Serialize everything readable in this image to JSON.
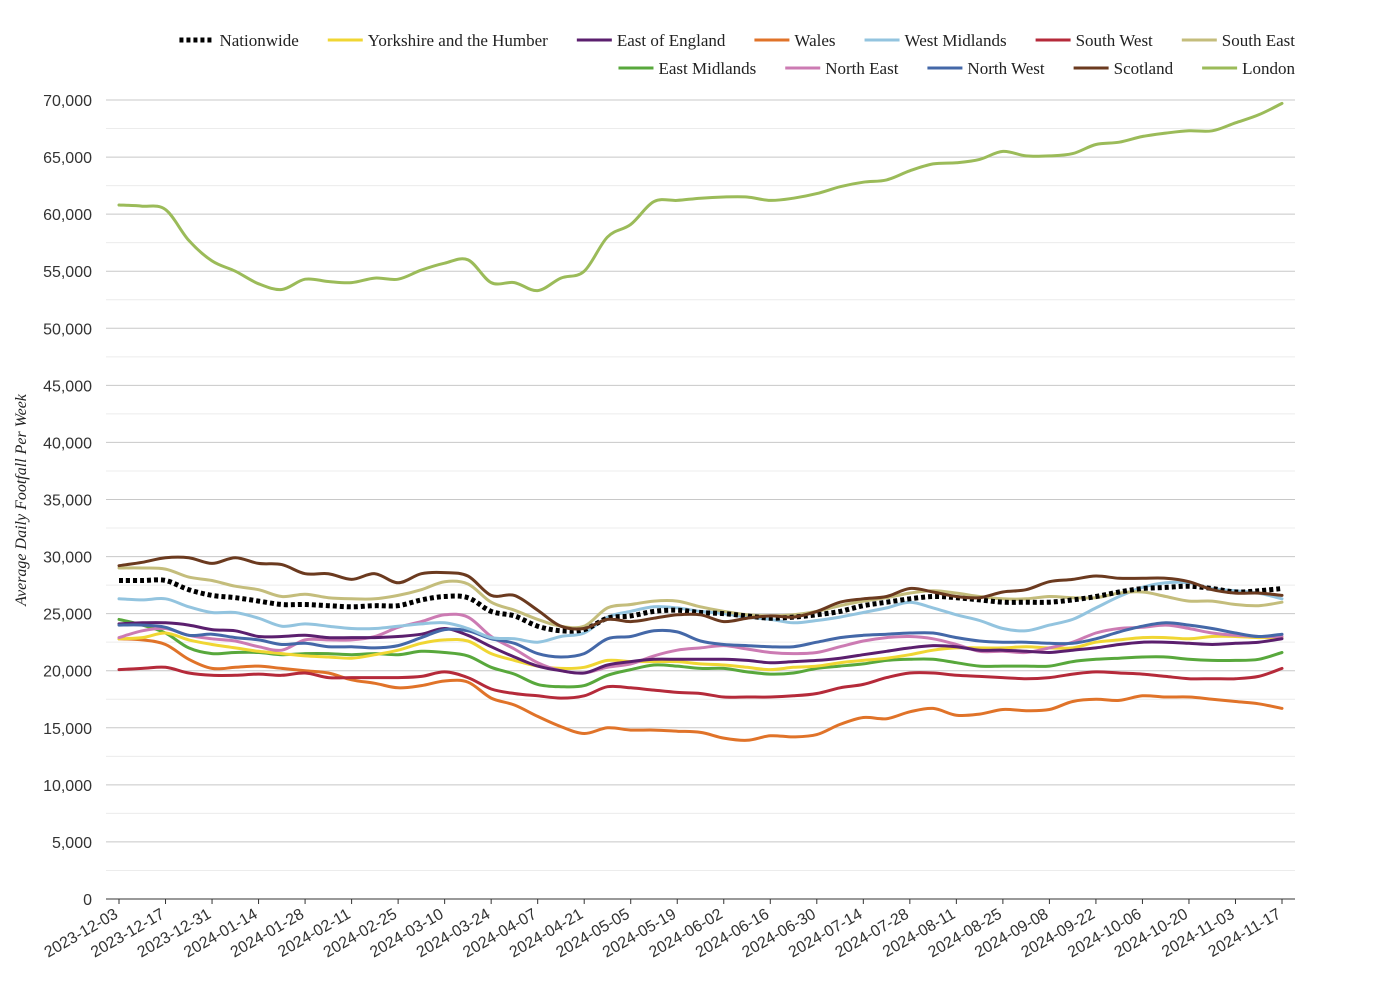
{
  "chart_data": {
    "type": "line",
    "title": "",
    "ylabel": "Average Daily Footfall Per Week",
    "xlabel": "",
    "ylim": [
      0,
      70000
    ],
    "yticks": [
      0,
      5000,
      10000,
      15000,
      20000,
      25000,
      30000,
      35000,
      40000,
      45000,
      50000,
      55000,
      60000,
      65000,
      70000
    ],
    "ytick_labels": [
      "0",
      "5,000",
      "10,000",
      "15,000",
      "20,000",
      "25,000",
      "30,000",
      "35,000",
      "40,000",
      "45,000",
      "50,000",
      "55,000",
      "60,000",
      "65,000",
      "70,000"
    ],
    "x_tick_labels": [
      "2023-12-03",
      "2023-12-17",
      "2023-12-31",
      "2024-01-14",
      "2024-01-28",
      "2024-02-11",
      "2024-02-25",
      "2024-03-10",
      "2024-03-24",
      "2024-04-07",
      "2024-04-21",
      "2024-05-05",
      "2024-05-19",
      "2024-06-02",
      "2024-06-16",
      "2024-06-30",
      "2024-07-14",
      "2024-07-28",
      "2024-08-11",
      "2024-08-25",
      "2024-09-08",
      "2024-09-22",
      "2024-10-06",
      "2024-10-20",
      "2024-11-03",
      "2024-11-17"
    ],
    "grid": true,
    "legend_position": "top",
    "x": [
      "2023-12-03",
      "2023-12-10",
      "2023-12-17",
      "2023-12-24",
      "2023-12-31",
      "2024-01-07",
      "2024-01-14",
      "2024-01-21",
      "2024-01-28",
      "2024-02-04",
      "2024-02-11",
      "2024-02-18",
      "2024-02-25",
      "2024-03-03",
      "2024-03-10",
      "2024-03-17",
      "2024-03-24",
      "2024-03-31",
      "2024-04-07",
      "2024-04-14",
      "2024-04-21",
      "2024-04-28",
      "2024-05-05",
      "2024-05-12",
      "2024-05-19",
      "2024-05-26",
      "2024-06-02",
      "2024-06-09",
      "2024-06-16",
      "2024-06-23",
      "2024-06-30",
      "2024-07-07",
      "2024-07-14",
      "2024-07-21",
      "2024-07-28",
      "2024-08-04",
      "2024-08-11",
      "2024-08-18",
      "2024-08-25",
      "2024-09-01",
      "2024-09-08",
      "2024-09-15",
      "2024-09-22",
      "2024-09-29",
      "2024-10-06",
      "2024-10-13",
      "2024-10-20",
      "2024-10-27",
      "2024-11-03",
      "2024-11-10",
      "2024-11-17"
    ],
    "series": [
      {
        "name": "London",
        "color": "#9bbb59",
        "values": [
          60800,
          60700,
          60400,
          57700,
          55900,
          55000,
          53900,
          53400,
          54300,
          54100,
          54000,
          54400,
          54300,
          55100,
          55700,
          56000,
          54000,
          54000,
          53300,
          54400,
          55000,
          58000,
          59100,
          61100,
          61200,
          61400,
          61500,
          61500,
          61200,
          61400,
          61800,
          62400,
          62800,
          63000,
          63800,
          64400,
          64500,
          64800,
          65500,
          65100,
          65100,
          65300,
          66100,
          66300,
          66800,
          67100,
          67300,
          67300,
          68000,
          68700,
          69700
        ]
      },
      {
        "name": "Scotland",
        "color": "#6b3a1f",
        "values": [
          29200,
          29500,
          29900,
          29900,
          29400,
          29900,
          29400,
          29300,
          28500,
          28500,
          28000,
          28500,
          27700,
          28500,
          28600,
          28300,
          26600,
          26600,
          25300,
          23900,
          23700,
          24500,
          24300,
          24600,
          24900,
          24900,
          24300,
          24600,
          24800,
          24700,
          25200,
          26000,
          26300,
          26500,
          27200,
          26900,
          26500,
          26400,
          26900,
          27100,
          27800,
          28000,
          28300,
          28100,
          28100,
          28100,
          27800,
          27100,
          26800,
          26800,
          26600
        ]
      },
      {
        "name": "Nationwide",
        "color": "#000000",
        "dashed": true,
        "values": [
          27900,
          27900,
          27900,
          27100,
          26600,
          26400,
          26100,
          25800,
          25800,
          25700,
          25600,
          25700,
          25700,
          26200,
          26500,
          26400,
          25200,
          24800,
          23900,
          23500,
          23600,
          24600,
          24800,
          25200,
          25300,
          25100,
          25000,
          24800,
          24600,
          24700,
          24900,
          25200,
          25700,
          26000,
          26300,
          26500,
          26400,
          26200,
          26000,
          26000,
          26000,
          26200,
          26500,
          26900,
          27200,
          27300,
          27400,
          27200,
          26900,
          27000,
          27200
        ]
      },
      {
        "name": "South East",
        "color": "#c4bd7c",
        "values": [
          29000,
          29000,
          28900,
          28200,
          27900,
          27400,
          27100,
          26500,
          26700,
          26400,
          26300,
          26300,
          26600,
          27100,
          27800,
          27600,
          26000,
          25300,
          24500,
          23900,
          23900,
          25500,
          25800,
          26100,
          26100,
          25600,
          25200,
          24900,
          24800,
          24900,
          25200,
          25700,
          26100,
          26400,
          26800,
          27000,
          26800,
          26500,
          26300,
          26300,
          26500,
          26400,
          26400,
          26800,
          26900,
          26500,
          26100,
          26100,
          25800,
          25700,
          26000
        ]
      },
      {
        "name": "West Midlands",
        "color": "#93c4df",
        "values": [
          26300,
          26200,
          26300,
          25600,
          25100,
          25100,
          24600,
          23900,
          24100,
          23900,
          23700,
          23700,
          23900,
          24100,
          24200,
          23700,
          22900,
          22800,
          22500,
          23000,
          23300,
          24700,
          25200,
          25600,
          25500,
          25200,
          25000,
          24700,
          24500,
          24200,
          24400,
          24700,
          25100,
          25500,
          26000,
          25500,
          24900,
          24400,
          23700,
          23500,
          24000,
          24500,
          25500,
          26500,
          27300,
          27700,
          27700,
          27200,
          27000,
          26800,
          26300
        ]
      },
      {
        "name": "North West",
        "color": "#4468a8",
        "values": [
          24000,
          24000,
          23800,
          23100,
          23200,
          22900,
          22700,
          22300,
          22400,
          22100,
          22100,
          22000,
          22200,
          22900,
          23600,
          23500,
          22800,
          22400,
          21500,
          21200,
          21500,
          22800,
          23000,
          23500,
          23400,
          22600,
          22300,
          22200,
          22100,
          22100,
          22500,
          22900,
          23100,
          23200,
          23300,
          23300,
          22900,
          22600,
          22500,
          22500,
          22400,
          22400,
          22800,
          23400,
          23900,
          24200,
          24000,
          23700,
          23300,
          23000,
          23200
        ]
      },
      {
        "name": "East of England",
        "color": "#5b1f6e",
        "values": [
          24100,
          24200,
          24200,
          24000,
          23600,
          23500,
          23000,
          23000,
          23100,
          22900,
          22900,
          22900,
          23000,
          23200,
          23700,
          23100,
          22100,
          21200,
          20400,
          20000,
          19800,
          20500,
          20800,
          21000,
          21000,
          21000,
          21000,
          20900,
          20700,
          20800,
          20900,
          21100,
          21400,
          21700,
          22000,
          22200,
          22100,
          21800,
          21800,
          21700,
          21600,
          21800,
          22000,
          22300,
          22500,
          22500,
          22400,
          22300,
          22400,
          22500,
          22800
        ]
      },
      {
        "name": "North East",
        "color": "#cc7bb3",
        "values": [
          22900,
          23500,
          23700,
          23100,
          22800,
          22600,
          22100,
          21800,
          22700,
          22700,
          22700,
          23000,
          23800,
          24300,
          24900,
          24700,
          23000,
          21900,
          20700,
          20000,
          19800,
          20300,
          20600,
          21300,
          21800,
          22000,
          22200,
          21900,
          21600,
          21500,
          21600,
          22100,
          22600,
          22900,
          23000,
          22800,
          22300,
          21700,
          21700,
          21600,
          22000,
          22500,
          23300,
          23700,
          23800,
          24000,
          23700,
          23300,
          23100,
          23000,
          23000
        ]
      },
      {
        "name": "Yorkshire and the Humber",
        "color": "#f0d633",
        "values": [
          22800,
          22900,
          23300,
          22700,
          22300,
          22000,
          21700,
          21500,
          21300,
          21200,
          21100,
          21400,
          21800,
          22400,
          22700,
          22600,
          21500,
          20900,
          20400,
          20200,
          20300,
          20900,
          20800,
          20800,
          20800,
          20600,
          20500,
          20300,
          20100,
          20300,
          20400,
          20700,
          20900,
          21100,
          21400,
          21800,
          22000,
          22000,
          22000,
          22100,
          22000,
          22000,
          22500,
          22700,
          22900,
          22900,
          22800,
          23000,
          23000,
          22900,
          22900
        ]
      },
      {
        "name": "East Midlands",
        "color": "#58a83c",
        "values": [
          24500,
          24000,
          23300,
          22000,
          21500,
          21600,
          21600,
          21400,
          21500,
          21500,
          21400,
          21500,
          21400,
          21700,
          21600,
          21300,
          20300,
          19700,
          18800,
          18600,
          18700,
          19600,
          20100,
          20500,
          20400,
          20200,
          20200,
          19900,
          19700,
          19800,
          20200,
          20400,
          20600,
          20900,
          21000,
          21000,
          20700,
          20400,
          20400,
          20400,
          20400,
          20800,
          21000,
          21100,
          21200,
          21200,
          21000,
          20900,
          20900,
          21000,
          21600
        ]
      },
      {
        "name": "South West",
        "color": "#b52a3a",
        "values": [
          20100,
          20200,
          20300,
          19800,
          19600,
          19600,
          19700,
          19600,
          19800,
          19400,
          19400,
          19400,
          19400,
          19500,
          19900,
          19400,
          18400,
          18000,
          17800,
          17600,
          17800,
          18600,
          18500,
          18300,
          18100,
          18000,
          17700,
          17700,
          17700,
          17800,
          18000,
          18500,
          18800,
          19400,
          19800,
          19800,
          19600,
          19500,
          19400,
          19300,
          19400,
          19700,
          19900,
          19800,
          19700,
          19500,
          19300,
          19300,
          19300,
          19500,
          20200
        ]
      },
      {
        "name": "Wales",
        "color": "#e07329",
        "values": [
          22800,
          22700,
          22300,
          21000,
          20200,
          20300,
          20400,
          20200,
          20000,
          19800,
          19200,
          18900,
          18500,
          18700,
          19100,
          19000,
          17600,
          17000,
          16000,
          15100,
          14500,
          15000,
          14800,
          14800,
          14700,
          14600,
          14100,
          13900,
          14300,
          14200,
          14400,
          15300,
          15900,
          15800,
          16400,
          16700,
          16100,
          16200,
          16600,
          16500,
          16600,
          17300,
          17500,
          17400,
          17800,
          17700,
          17700,
          17500,
          17300,
          17100,
          16700
        ]
      }
    ],
    "legend_order": [
      "Nationwide",
      "Yorkshire and the Humber",
      "East of England",
      "Wales",
      "West Midlands",
      "South West",
      "South East",
      "East Midlands",
      "North East",
      "North West",
      "Scotland",
      "London"
    ]
  }
}
